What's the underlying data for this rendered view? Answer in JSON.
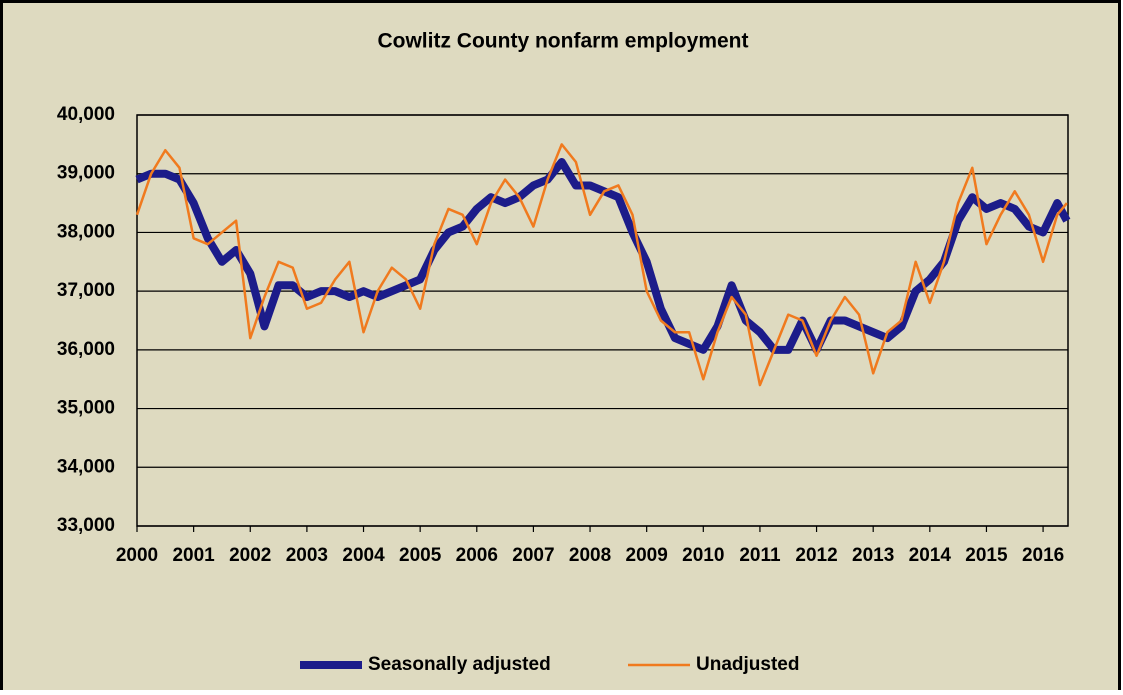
{
  "chart_data": {
    "type": "line",
    "title": "Cowlitz County nonfarm employment",
    "x": [
      2000,
      2000.25,
      2000.5,
      2000.75,
      2001,
      2001.25,
      2001.5,
      2001.75,
      2002,
      2002.25,
      2002.5,
      2002.75,
      2003,
      2003.25,
      2003.5,
      2003.75,
      2004,
      2004.25,
      2004.5,
      2004.75,
      2005,
      2005.25,
      2005.5,
      2005.75,
      2006,
      2006.25,
      2006.5,
      2006.75,
      2007,
      2007.25,
      2007.5,
      2007.75,
      2008,
      2008.25,
      2008.5,
      2008.75,
      2009,
      2009.25,
      2009.5,
      2009.75,
      2010,
      2010.25,
      2010.5,
      2010.75,
      2011,
      2011.25,
      2011.5,
      2011.75,
      2012,
      2012.25,
      2012.5,
      2012.75,
      2013,
      2013.25,
      2013.5,
      2013.75,
      2014,
      2014.25,
      2014.5,
      2014.75,
      2015,
      2015.25,
      2015.5,
      2015.75,
      2016,
      2016.25,
      2016.42
    ],
    "series": [
      {
        "name": "Seasonally adjusted",
        "color": "#1c1c8a",
        "width": 8,
        "values": [
          38900,
          39000,
          39000,
          38900,
          38500,
          37900,
          37500,
          37700,
          37300,
          36400,
          37100,
          37100,
          36900,
          37000,
          37000,
          36900,
          37000,
          36900,
          37000,
          37100,
          37200,
          37700,
          38000,
          38100,
          38400,
          38600,
          38500,
          38600,
          38800,
          38900,
          39200,
          38800,
          38800,
          38700,
          38600,
          38000,
          37500,
          36700,
          36200,
          36100,
          36000,
          36400,
          37100,
          36500,
          36300,
          36000,
          36000,
          36500,
          36000,
          36500,
          36500,
          36400,
          36300,
          36200,
          36400,
          37000,
          37200,
          37500,
          38200,
          38600,
          38400,
          38500,
          38400,
          38100,
          38000,
          38500,
          38200
        ]
      },
      {
        "name": "Unadjusted",
        "color": "#f07a1e",
        "width": 2.5,
        "values": [
          38300,
          39000,
          39400,
          39100,
          37900,
          37800,
          38000,
          38200,
          36200,
          36900,
          37500,
          37400,
          36700,
          36800,
          37200,
          37500,
          36300,
          37000,
          37400,
          37200,
          36700,
          37800,
          38400,
          38300,
          37800,
          38500,
          38900,
          38600,
          38100,
          38900,
          39500,
          39200,
          38300,
          38700,
          38800,
          38300,
          37000,
          36500,
          36300,
          36300,
          35500,
          36300,
          36900,
          36600,
          35400,
          36000,
          36600,
          36500,
          35900,
          36500,
          36900,
          36600,
          35600,
          36300,
          36500,
          37500,
          36800,
          37500,
          38500,
          39100,
          37800,
          38300,
          38700,
          38300,
          37500,
          38300,
          38500
        ]
      }
    ],
    "xlim": [
      2000,
      2016.44
    ],
    "xticks": [
      2000,
      2001,
      2002,
      2003,
      2004,
      2005,
      2006,
      2007,
      2008,
      2009,
      2010,
      2011,
      2012,
      2013,
      2014,
      2015,
      2016
    ],
    "ylim": [
      33000,
      40000
    ],
    "yticks": [
      {
        "value": 33000,
        "label": "33,000"
      },
      {
        "value": 34000,
        "label": "34,000"
      },
      {
        "value": 35000,
        "label": "35,000"
      },
      {
        "value": 36000,
        "label": "36,000"
      },
      {
        "value": 37000,
        "label": "37,000"
      },
      {
        "value": 38000,
        "label": "38,000"
      },
      {
        "value": 39000,
        "label": "39,000"
      },
      {
        "value": 40000,
        "label": "40,000"
      }
    ],
    "grid": true
  }
}
